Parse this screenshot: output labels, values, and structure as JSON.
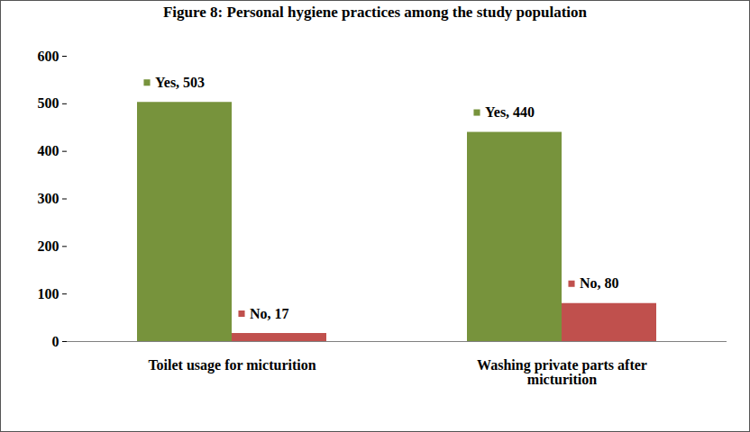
{
  "chart_data": {
    "type": "bar",
    "title": "Figure 8: Personal hygiene practices among the study population",
    "categories": [
      "Toilet usage for micturition",
      "Washing private parts after micturition"
    ],
    "series": [
      {
        "name": "Yes",
        "color": "#77933c",
        "values": [
          503,
          440
        ],
        "value_labels": [
          "Yes, 503",
          "Yes, 440"
        ]
      },
      {
        "name": "No",
        "color": "#c0504d",
        "values": [
          17,
          80
        ],
        "value_labels": [
          "No, 17",
          "No, 80"
        ]
      }
    ],
    "ylim": [
      0,
      600
    ],
    "yticks": [
      0,
      100,
      200,
      300,
      400,
      500,
      600
    ],
    "grid": false,
    "data_labels": true
  }
}
